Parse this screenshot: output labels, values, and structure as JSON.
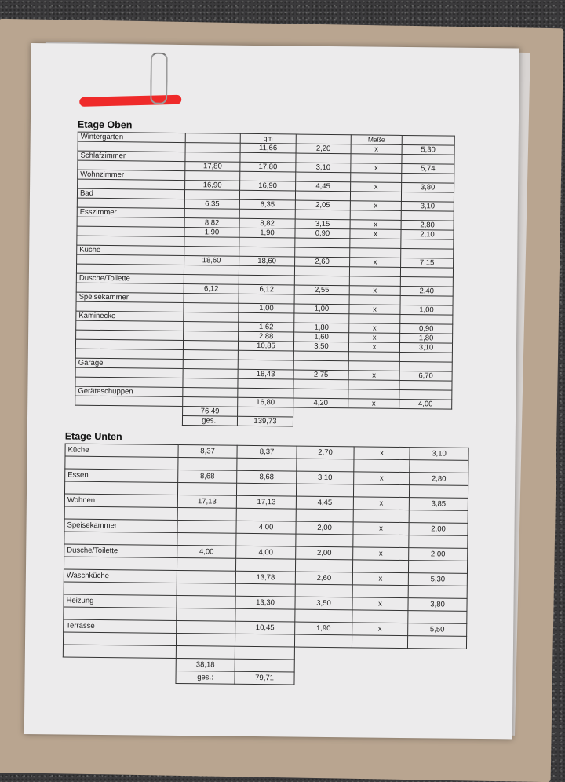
{
  "upper": {
    "title": "Etage Oben",
    "header_qm": "qm",
    "header_masse": "Maße",
    "rows": [
      {
        "label": "Wintergarten",
        "lines": [
          [
            "",
            "11,66",
            "2,20",
            "x",
            "5,30"
          ]
        ]
      },
      {
        "label": "Schlafzimmer",
        "lines": [
          [
            "17,80",
            "17,80",
            "3,10",
            "x",
            "5,74"
          ]
        ]
      },
      {
        "label": "Wohnzimmer",
        "lines": [
          [
            "16,90",
            "16,90",
            "4,45",
            "x",
            "3,80"
          ]
        ]
      },
      {
        "label": "Bad",
        "lines": [
          [
            "6,35",
            "6,35",
            "2,05",
            "x",
            "3,10"
          ]
        ]
      },
      {
        "label": "Esszimmer",
        "lines": [
          [
            "8,82",
            "8,82",
            "3,15",
            "x",
            "2,80"
          ],
          [
            "1,90",
            "1,90",
            "0,90",
            "x",
            "2,10"
          ],
          [
            "",
            "",
            "",
            "",
            ""
          ]
        ]
      },
      {
        "label": "Küche",
        "lines": [
          [
            "18,60",
            "18,60",
            "2,60",
            "x",
            "7,15"
          ],
          [
            "",
            "",
            "",
            "",
            ""
          ]
        ]
      },
      {
        "label": "Dusche/Toilette",
        "lines": [
          [
            "6,12",
            "6,12",
            "2,55",
            "x",
            "2,40"
          ]
        ]
      },
      {
        "label": "Speisekammer",
        "lines": [
          [
            "",
            "1,00",
            "1,00",
            "x",
            "1,00"
          ]
        ]
      },
      {
        "label": "Kaminecke",
        "lines": [
          [
            "",
            "1,62",
            "1,80",
            "x",
            "0,90"
          ],
          [
            "",
            "2,88",
            "1,60",
            "x",
            "1,80"
          ],
          [
            "",
            "10,85",
            "3,50",
            "x",
            "3,10"
          ],
          [
            "",
            "",
            "",
            "",
            ""
          ]
        ]
      },
      {
        "label": "Garage",
        "lines": [
          [
            "",
            "18,43",
            "2,75",
            "x",
            "6,70"
          ],
          [
            "",
            "",
            "",
            "",
            ""
          ]
        ]
      },
      {
        "label": "Geräteschuppen",
        "lines": [
          [
            "",
            "16,80",
            "4,20",
            "x",
            "4,00"
          ]
        ]
      }
    ],
    "subtotal": "76,49",
    "total_label": "ges.:",
    "total": "139,73"
  },
  "lower": {
    "title": "Etage Unten",
    "rows": [
      {
        "label": "Küche",
        "values": [
          "8,37",
          "8,37",
          "2,70",
          "x",
          "3,10"
        ]
      },
      {
        "label": "Essen",
        "values": [
          "8,68",
          "8,68",
          "3,10",
          "x",
          "2,80"
        ]
      },
      {
        "label": "Wohnen",
        "values": [
          "17,13",
          "17,13",
          "4,45",
          "x",
          "3,85"
        ]
      },
      {
        "label": "Speisekammer",
        "values": [
          "",
          "4,00",
          "2,00",
          "x",
          "2,00"
        ]
      },
      {
        "label": "Dusche/Toilette",
        "values": [
          "4,00",
          "4,00",
          "2,00",
          "x",
          "2,00"
        ]
      },
      {
        "label": "Waschküche",
        "values": [
          "",
          "13,78",
          "2,60",
          "x",
          "5,30"
        ]
      },
      {
        "label": "Heizung",
        "values": [
          "",
          "13,30",
          "3,50",
          "x",
          "3,80"
        ]
      },
      {
        "label": "Terrasse",
        "values": [
          "",
          "10,45",
          "1,90",
          "x",
          "5,50"
        ]
      }
    ],
    "subtotal": "38,18",
    "total_label": "ges.:",
    "total": "79,71"
  },
  "colors": {
    "paper": "#ecebec",
    "folder": "#b9a590",
    "redaction": "#ef2a2a"
  }
}
